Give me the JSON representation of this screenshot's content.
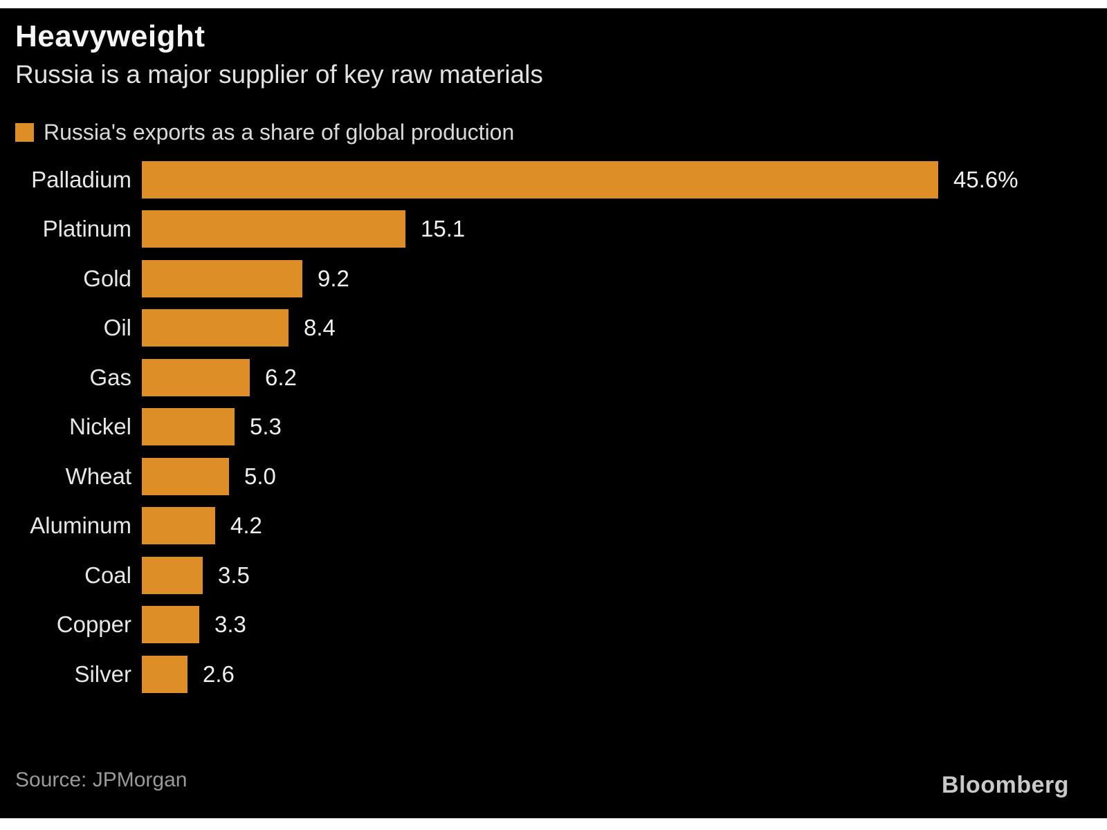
{
  "page": {
    "background_color": "#ffffff",
    "card_color": "#000000"
  },
  "header": {
    "title": "Heavyweight",
    "subtitle": "Russia is a major supplier of key raw materials"
  },
  "legend": {
    "label": "Russia's exports as a share of global production",
    "swatch_color": "#dd8e27"
  },
  "chart_data": {
    "type": "bar",
    "orientation": "horizontal",
    "title": "Heavyweight",
    "subtitle": "Russia is a major supplier of key raw materials",
    "series_name": "Russia's exports as a share of global production",
    "unit": "%",
    "categories": [
      "Palladium",
      "Platinum",
      "Gold",
      "Oil",
      "Gas",
      "Nickel",
      "Wheat",
      "Aluminum",
      "Coal",
      "Copper",
      "Silver"
    ],
    "values": [
      45.6,
      15.1,
      9.2,
      8.4,
      6.2,
      5.3,
      5.0,
      4.2,
      3.5,
      3.3,
      2.6
    ],
    "value_labels": [
      "45.6%",
      "15.1",
      "9.2",
      "8.4",
      "6.2",
      "5.3",
      "5.0",
      "4.2",
      "3.5",
      "3.3",
      "2.6"
    ],
    "xlim": [
      0,
      45.6
    ],
    "bar_color": "#dd8e27",
    "grid": "off",
    "legend_position": "top-left"
  },
  "footer": {
    "source": "Source: JPMorgan",
    "brand": "Bloomberg"
  }
}
